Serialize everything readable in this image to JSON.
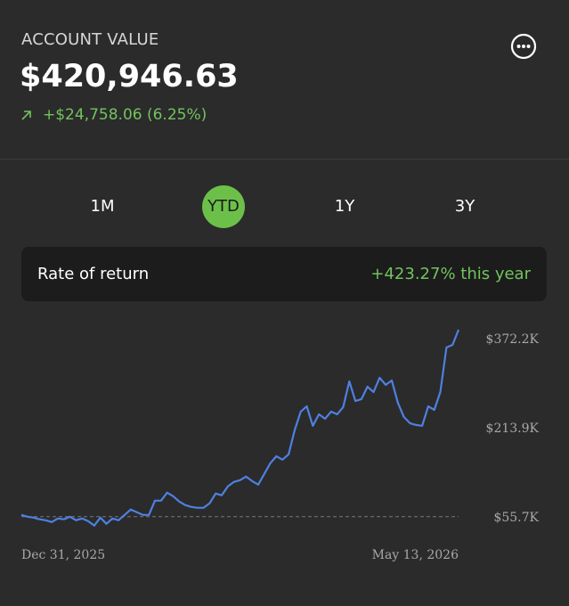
{
  "header": {
    "label": "ACCOUNT VALUE",
    "value": "$420,946.63",
    "change": "+$24,758.06 (6.25%)"
  },
  "ranges": {
    "options": [
      "1M",
      "YTD",
      "1Y",
      "3Y"
    ],
    "selected": 1
  },
  "rate_of_return": {
    "label": "Rate of return",
    "value": "+423.27% this year"
  },
  "chart_data": {
    "type": "line",
    "categories": [
      "Dec 31, 2025",
      null,
      null,
      null,
      null,
      null,
      null,
      null,
      null,
      null,
      null,
      null,
      null,
      null,
      null,
      null,
      null,
      null,
      null,
      null,
      null,
      null,
      null,
      null,
      null,
      null,
      null,
      null,
      null,
      null,
      null,
      null,
      null,
      null,
      null,
      null,
      null,
      null,
      null,
      null,
      null,
      null,
      null,
      null,
      null,
      null,
      null,
      null,
      null,
      null,
      null,
      null,
      null,
      null,
      null,
      null,
      null,
      null,
      null,
      null,
      null,
      null,
      null,
      null,
      null,
      null,
      null,
      null,
      null,
      null,
      null,
      null,
      "May 13, 2026"
    ],
    "values": [
      58900,
      55700,
      54100,
      51000,
      49400,
      46200,
      52500,
      51000,
      55700,
      49400,
      52500,
      47800,
      39900,
      54100,
      43000,
      52500,
      49400,
      58900,
      68400,
      63600,
      58900,
      58900,
      84200,
      84200,
      98400,
      92100,
      82600,
      76300,
      73100,
      71500,
      71500,
      79400,
      96900,
      93700,
      109500,
      117400,
      120600,
      126900,
      119000,
      112700,
      131700,
      150700,
      163300,
      157000,
      166500,
      209300,
      242500,
      252000,
      217200,
      237700,
      229800,
      242500,
      237700,
      250400,
      296300,
      261500,
      264700,
      286800,
      277300,
      302600,
      290000,
      297900,
      258300,
      233000,
      221900,
      218700,
      217200,
      252000,
      245700,
      277300,
      356500,
      361200,
      388100
    ],
    "color": "#4f80e2",
    "ylim": [
      30000,
      396000
    ],
    "yticks": [
      {
        "value": 372200,
        "label": "$372.2K"
      },
      {
        "value": 213900,
        "label": "$213.9K"
      },
      {
        "value": 55700,
        "label": "$55.7K"
      }
    ],
    "grid": false
  }
}
